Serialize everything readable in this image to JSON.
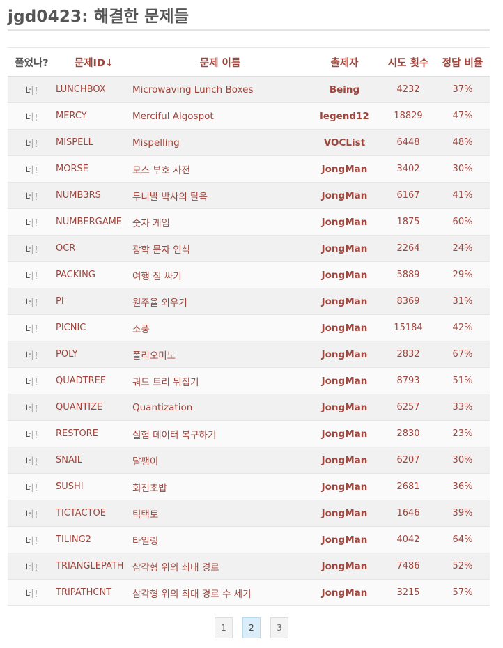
{
  "page": {
    "title": "jgd0423: 해결한 문제들"
  },
  "table": {
    "headers": {
      "solved": "풀었나?",
      "id": "문제ID",
      "id_sort_arrow": "↓",
      "name": "문제 이름",
      "author": "출제자",
      "attempts": "시도 횟수",
      "ratio": "정답 비율"
    },
    "rows": [
      {
        "solved": "네!",
        "id": "LUNCHBOX",
        "name": "Microwaving Lunch Boxes",
        "author": "Being",
        "attempts": "4232",
        "ratio": "37%"
      },
      {
        "solved": "네!",
        "id": "MERCY",
        "name": "Merciful Algospot",
        "author": "legend12",
        "attempts": "18829",
        "ratio": "47%"
      },
      {
        "solved": "네!",
        "id": "MISPELL",
        "name": "Mispelling",
        "author": "VOCList",
        "attempts": "6448",
        "ratio": "48%"
      },
      {
        "solved": "네!",
        "id": "MORSE",
        "name": "모스 부호 사전",
        "author": "JongMan",
        "attempts": "3402",
        "ratio": "30%"
      },
      {
        "solved": "네!",
        "id": "NUMB3RS",
        "name": "두니발 박사의 탈옥",
        "author": "JongMan",
        "attempts": "6167",
        "ratio": "41%"
      },
      {
        "solved": "네!",
        "id": "NUMBERGAME",
        "name": "숫자 게임",
        "author": "JongMan",
        "attempts": "1875",
        "ratio": "60%"
      },
      {
        "solved": "네!",
        "id": "OCR",
        "name": "광학 문자 인식",
        "author": "JongMan",
        "attempts": "2264",
        "ratio": "24%"
      },
      {
        "solved": "네!",
        "id": "PACKING",
        "name": "여행 짐 싸기",
        "author": "JongMan",
        "attempts": "5889",
        "ratio": "29%"
      },
      {
        "solved": "네!",
        "id": "PI",
        "name": "원주율 외우기",
        "author": "JongMan",
        "attempts": "8369",
        "ratio": "31%"
      },
      {
        "solved": "네!",
        "id": "PICNIC",
        "name": "소풍",
        "author": "JongMan",
        "attempts": "15184",
        "ratio": "42%"
      },
      {
        "solved": "네!",
        "id": "POLY",
        "name": "폴리오미노",
        "author": "JongMan",
        "attempts": "2832",
        "ratio": "67%"
      },
      {
        "solved": "네!",
        "id": "QUADTREE",
        "name": "쿼드 트리 뒤집기",
        "author": "JongMan",
        "attempts": "8793",
        "ratio": "51%"
      },
      {
        "solved": "네!",
        "id": "QUANTIZE",
        "name": "Quantization",
        "author": "JongMan",
        "attempts": "6257",
        "ratio": "33%"
      },
      {
        "solved": "네!",
        "id": "RESTORE",
        "name": "실험 데이터 복구하기",
        "author": "JongMan",
        "attempts": "2830",
        "ratio": "23%"
      },
      {
        "solved": "네!",
        "id": "SNAIL",
        "name": "달팽이",
        "author": "JongMan",
        "attempts": "6207",
        "ratio": "30%"
      },
      {
        "solved": "네!",
        "id": "SUSHI",
        "name": "회전초밥",
        "author": "JongMan",
        "attempts": "2681",
        "ratio": "36%"
      },
      {
        "solved": "네!",
        "id": "TICTACTOE",
        "name": "틱택토",
        "author": "JongMan",
        "attempts": "1646",
        "ratio": "39%"
      },
      {
        "solved": "네!",
        "id": "TILING2",
        "name": "타일링",
        "author": "JongMan",
        "attempts": "4042",
        "ratio": "64%"
      },
      {
        "solved": "네!",
        "id": "TRIANGLEPATH",
        "name": "삼각형 위의 최대 경로",
        "author": "JongMan",
        "attempts": "7486",
        "ratio": "52%"
      },
      {
        "solved": "네!",
        "id": "TRIPATHCNT",
        "name": "삼각형 위의 최대 경로 수 세기",
        "author": "JongMan",
        "attempts": "3215",
        "ratio": "57%"
      }
    ]
  },
  "pagination": {
    "pages": [
      "1",
      "2",
      "3"
    ],
    "current": "2"
  }
}
